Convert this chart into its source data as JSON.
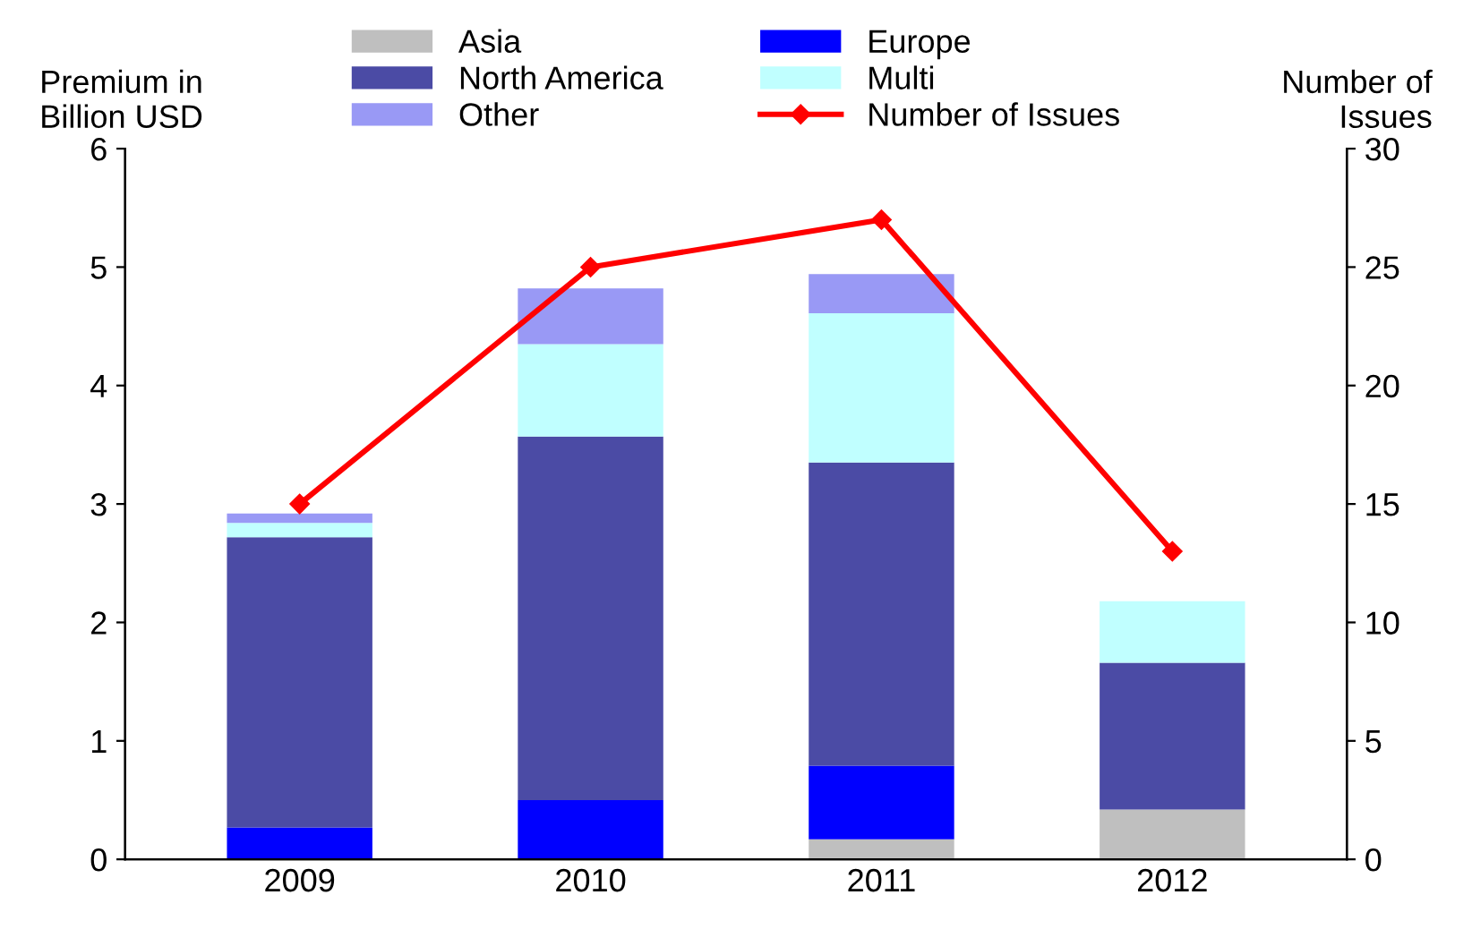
{
  "chart_data": {
    "type": "bar",
    "stacked": true,
    "ylabel": "Premium in\nBillion USD",
    "y2label": "Number of\nIssues",
    "categories": [
      "2009",
      "2010",
      "2011",
      "2012"
    ],
    "series": [
      {
        "name": "Asia",
        "color": "#bfbfbf",
        "values": [
          0,
          0,
          0.17,
          0.42
        ]
      },
      {
        "name": "Europe",
        "color": "#0000ff",
        "values": [
          0.27,
          0.5,
          0.62,
          0
        ]
      },
      {
        "name": "North America",
        "color": "#4b4ba5",
        "values": [
          2.45,
          3.07,
          2.56,
          1.24
        ]
      },
      {
        "name": "Multi",
        "color": "#c0ffff",
        "values": [
          0.12,
          0.78,
          1.26,
          0.52
        ]
      },
      {
        "name": "Other",
        "color": "#9999f5",
        "values": [
          0.08,
          0.47,
          0.33,
          0
        ]
      },
      {
        "name": "Number of Issues",
        "type": "line",
        "axis": "y2",
        "color": "#ff0000",
        "marker": "diamond",
        "values": [
          15,
          25,
          27,
          13
        ]
      }
    ],
    "ylim": [
      0,
      6
    ],
    "yticks": [
      0,
      1,
      2,
      3,
      4,
      5,
      6
    ],
    "y2lim": [
      0,
      30
    ],
    "y2ticks": [
      0,
      5,
      10,
      15,
      20,
      25,
      30
    ],
    "legend": "top",
    "grid": false
  }
}
